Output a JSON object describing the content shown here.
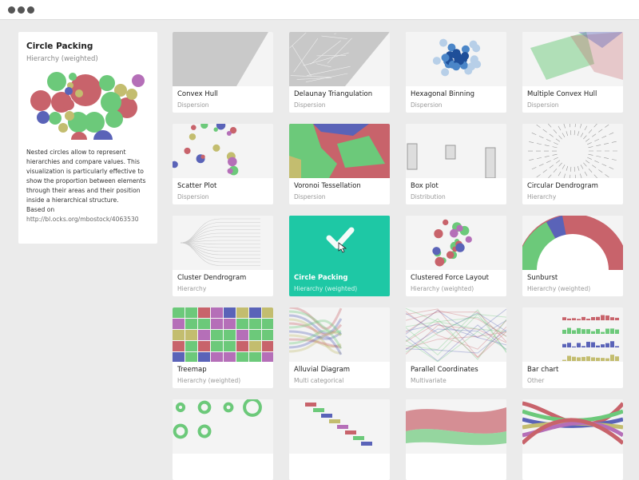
{
  "window": {
    "controls": [
      "close",
      "minimize",
      "maximize"
    ]
  },
  "detail": {
    "title": "Circle Packing",
    "category": "Hierarchy (weighted)",
    "description": "Nested circles allow to represent hierarchies and compare values. This visualization is particularly effective to show the proportion between elements through their areas and their position inside a hierarchical structure.",
    "based_on": "Based on",
    "link": "http://bl.ocks.org/mbostock/4063530"
  },
  "colors": {
    "accent": "#1ec8a5",
    "red": "#c8636b",
    "green": "#6cc97a",
    "blue": "#5a63b8",
    "olive": "#c3bd6f",
    "purple": "#b56fb8"
  },
  "charts": [
    {
      "title": "Convex Hull",
      "category": "Dispersion",
      "thumb": "hull"
    },
    {
      "title": "Delaunay Triangulation",
      "category": "Dispersion",
      "thumb": "delaunay"
    },
    {
      "title": "Hexagonal Binning",
      "category": "Dispersion",
      "thumb": "hex"
    },
    {
      "title": "Multiple Convex Hull",
      "category": "Dispersion",
      "thumb": "mhull"
    },
    {
      "title": "Scatter Plot",
      "category": "Dispersion",
      "thumb": "scatter"
    },
    {
      "title": "Voronoi Tessellation",
      "category": "Dispersion",
      "thumb": "voronoi"
    },
    {
      "title": "Box plot",
      "category": "Distribution",
      "thumb": "box"
    },
    {
      "title": "Circular Dendrogram",
      "category": "Hierarchy",
      "thumb": "cdendro"
    },
    {
      "title": "Cluster Dendrogram",
      "category": "Hierarchy",
      "thumb": "dendro"
    },
    {
      "title": "Circle Packing",
      "category": "Hierarchy (weighted)",
      "thumb": "selected",
      "selected": true
    },
    {
      "title": "Clustered Force Layout",
      "category": "Hierarchy (weighted)",
      "thumb": "force"
    },
    {
      "title": "Sunburst",
      "category": "Hierarchy (weighted)",
      "thumb": "sunburst"
    },
    {
      "title": "Treemap",
      "category": "Hierarchy (weighted)",
      "thumb": "treemap"
    },
    {
      "title": "Alluvial Diagram",
      "category": "Multi categorical",
      "thumb": "alluvial"
    },
    {
      "title": "Parallel Coordinates",
      "category": "Multivariate",
      "thumb": "parallel"
    },
    {
      "title": "Bar chart",
      "category": "Other",
      "thumb": "bar"
    },
    {
      "title": "",
      "category": "",
      "thumb": "donut"
    },
    {
      "title": "",
      "category": "",
      "thumb": "gantt"
    },
    {
      "title": "",
      "category": "",
      "thumb": "stream"
    },
    {
      "title": "",
      "category": "",
      "thumb": "bump"
    }
  ]
}
